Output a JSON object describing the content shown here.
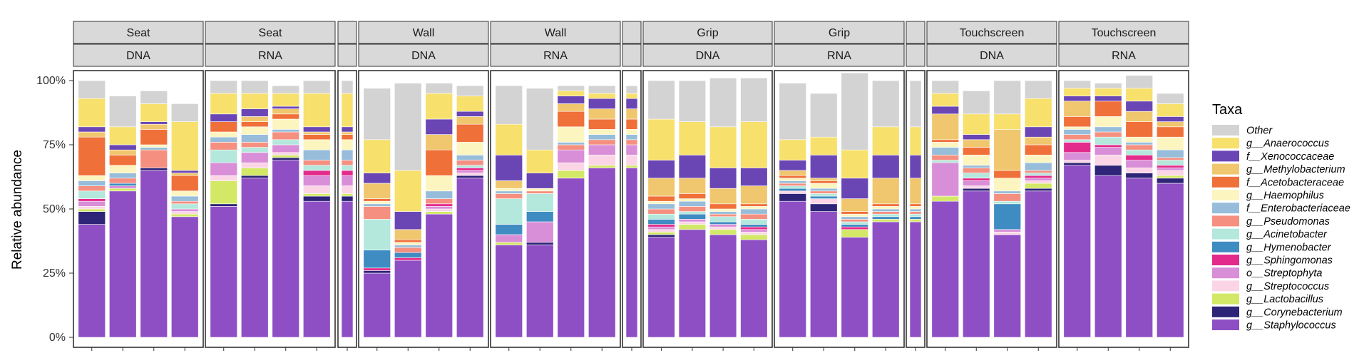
{
  "chart_data": {
    "type": "bar",
    "stacked": true,
    "ylabel": "Relative abundance",
    "xlabel": "",
    "ylim": [
      0,
      100
    ],
    "yticks": [
      0,
      25,
      50,
      75,
      100
    ],
    "ytick_labels": [
      "0%",
      "25%",
      "50%",
      "75%",
      "100%"
    ],
    "legend": {
      "title": "Taxa",
      "position": "right",
      "entries": [
        {
          "name": "Other",
          "color": "#d3d3d3"
        },
        {
          "name": "g__Anaerococcus",
          "color": "#f7e06c"
        },
        {
          "name": "f__Xenococcaceae",
          "color": "#6a46b5"
        },
        {
          "name": "g__Methylobacterium",
          "color": "#f0c76e"
        },
        {
          "name": "f__Acetobacteraceae",
          "color": "#f0703a"
        },
        {
          "name": "g__Haemophilus",
          "color": "#fcf5c0"
        },
        {
          "name": "f__Enterobacteriaceae",
          "color": "#97bddb"
        },
        {
          "name": "g__Pseudomonas",
          "color": "#f59080"
        },
        {
          "name": "g__Acinetobacter",
          "color": "#b4e8dc"
        },
        {
          "name": "g__Hymenobacter",
          "color": "#3f8cc2"
        },
        {
          "name": "g__Sphingomonas",
          "color": "#e32b8c"
        },
        {
          "name": "o__Streptophyta",
          "color": "#d98ed8"
        },
        {
          "name": "g__Streptococcus",
          "color": "#fbd5e6"
        },
        {
          "name": "g__Lactobacillus",
          "color": "#d3e866"
        },
        {
          "name": "g__Corynebacterium",
          "color": "#2e2478"
        },
        {
          "name": "g__Staphylococcus",
          "color": "#8f4fc4"
        }
      ]
    },
    "facets": [
      {
        "top": "Seat",
        "bottom": "DNA",
        "samples": [
          [
            7,
            11,
            2,
            2,
            15,
            2,
            2,
            2,
            3,
            0,
            1,
            2,
            1,
            1,
            5,
            44
          ],
          [
            12,
            7,
            2,
            2,
            4,
            3,
            2,
            2,
            0,
            1,
            0,
            1,
            0,
            1,
            0,
            57
          ],
          [
            5,
            7,
            1,
            2,
            6,
            1,
            1,
            7,
            0,
            0,
            0,
            0,
            0,
            0,
            1,
            65
          ],
          [
            7,
            19,
            1,
            1,
            6,
            2,
            2,
            1,
            2,
            0,
            0,
            1,
            1,
            1,
            0,
            47
          ]
        ]
      },
      {
        "top": "Seat",
        "bottom": "RNA",
        "samples": [
          [
            5,
            8,
            3,
            0,
            4,
            2,
            2,
            3,
            5,
            0,
            0,
            5,
            2,
            9,
            1,
            51
          ],
          [
            5,
            6,
            3,
            2,
            2,
            3,
            3,
            2,
            2,
            0,
            0,
            4,
            2,
            3,
            1,
            62
          ],
          [
            3,
            5,
            1,
            2,
            2,
            4,
            1,
            3,
            2,
            0,
            0,
            3,
            1,
            1,
            1,
            69
          ],
          [
            5,
            13,
            2,
            1,
            2,
            4,
            4,
            2,
            2,
            0,
            2,
            4,
            3,
            1,
            2,
            53
          ]
        ]
      },
      {
        "top": "",
        "bottom": "",
        "samples": [
          [
            5,
            13,
            2,
            1,
            2,
            4,
            4,
            2,
            2,
            0,
            2,
            4,
            3,
            1,
            2,
            53
          ]
        ]
      },
      {
        "top": "Wall",
        "bottom": "DNA",
        "samples": [
          [
            20,
            13,
            4,
            6,
            1,
            1,
            1,
            5,
            12,
            7,
            1,
            0,
            0,
            0,
            1,
            25
          ],
          [
            34,
            16,
            7,
            4,
            1,
            1,
            1,
            2,
            0,
            2,
            1,
            0,
            0,
            0,
            0,
            30
          ],
          [
            4,
            10,
            6,
            6,
            10,
            6,
            3,
            2,
            0,
            0,
            1,
            1,
            1,
            1,
            0,
            48
          ],
          [
            4,
            6,
            2,
            3,
            7,
            5,
            2,
            2,
            1,
            0,
            1,
            1,
            1,
            0,
            1,
            62
          ]
        ]
      },
      {
        "top": "Wall",
        "bottom": "RNA",
        "samples": [
          [
            15,
            12,
            10,
            3,
            0,
            1,
            1,
            2,
            10,
            4,
            0,
            3,
            0,
            1,
            0,
            36
          ],
          [
            24,
            9,
            6,
            0,
            0,
            1,
            0,
            1,
            7,
            4,
            0,
            8,
            0,
            0,
            1,
            36
          ],
          [
            2,
            2,
            3,
            3,
            6,
            6,
            1,
            2,
            0,
            0,
            0,
            5,
            3,
            3,
            0,
            62
          ],
          [
            3,
            2,
            4,
            4,
            4,
            2,
            2,
            2,
            0,
            0,
            0,
            4,
            4,
            1,
            0,
            66
          ]
        ]
      },
      {
        "top": "",
        "bottom": "",
        "samples": [
          [
            3,
            2,
            4,
            4,
            4,
            2,
            2,
            2,
            0,
            0,
            0,
            4,
            4,
            1,
            0,
            66
          ]
        ]
      },
      {
        "top": "Grip",
        "bottom": "DNA",
        "samples": [
          [
            15,
            16,
            7,
            7,
            2,
            1,
            2,
            2,
            2,
            2,
            1,
            1,
            1,
            1,
            1,
            39
          ],
          [
            16,
            13,
            9,
            6,
            2,
            1,
            2,
            2,
            1,
            2,
            0,
            1,
            1,
            2,
            0,
            42
          ],
          [
            19,
            16,
            8,
            6,
            2,
            1,
            1,
            1,
            2,
            1,
            0,
            1,
            1,
            2,
            0,
            40
          ],
          [
            17,
            18,
            7,
            7,
            1,
            1,
            2,
            2,
            2,
            1,
            1,
            1,
            1,
            2,
            0,
            38
          ]
        ]
      },
      {
        "top": "Grip",
        "bottom": "RNA",
        "samples": [
          [
            22,
            8,
            4,
            2,
            1,
            1,
            1,
            1,
            1,
            1,
            0,
            0,
            1,
            0,
            3,
            53
          ],
          [
            17,
            7,
            9,
            1,
            1,
            2,
            1,
            1,
            1,
            1,
            0,
            0,
            2,
            0,
            3,
            49
          ],
          [
            30,
            11,
            8,
            5,
            1,
            1,
            1,
            1,
            1,
            1,
            1,
            0,
            0,
            3,
            0,
            39
          ],
          [
            18,
            11,
            9,
            10,
            1,
            1,
            1,
            1,
            1,
            1,
            0,
            0,
            0,
            1,
            0,
            45
          ]
        ]
      },
      {
        "top": "",
        "bottom": "",
        "samples": [
          [
            18,
            11,
            9,
            10,
            1,
            1,
            1,
            1,
            1,
            1,
            0,
            0,
            0,
            1,
            0,
            45
          ]
        ]
      },
      {
        "top": "Touchscreen",
        "bottom": "DNA",
        "samples": [
          [
            5,
            5,
            3,
            10,
            1,
            2,
            3,
            2,
            1,
            0,
            0,
            13,
            0,
            2,
            0,
            53
          ],
          [
            9,
            8,
            2,
            3,
            3,
            4,
            1,
            2,
            2,
            0,
            1,
            2,
            1,
            0,
            1,
            57
          ],
          [
            13,
            6,
            0,
            16,
            3,
            5,
            1,
            3,
            1,
            10,
            0,
            1,
            1,
            0,
            0,
            40
          ],
          [
            7,
            11,
            4,
            3,
            4,
            3,
            3,
            1,
            1,
            0,
            1,
            1,
            1,
            2,
            1,
            57
          ]
        ]
      },
      {
        "top": "Touchscreen",
        "bottom": "RNA",
        "samples": [
          [
            3,
            3,
            2,
            6,
            4,
            1,
            2,
            2,
            1,
            0,
            4,
            3,
            1,
            0,
            1,
            67
          ],
          [
            2,
            3,
            2,
            0,
            6,
            4,
            2,
            2,
            3,
            0,
            1,
            3,
            4,
            0,
            4,
            63
          ],
          [
            5,
            5,
            4,
            4,
            6,
            2,
            1,
            2,
            2,
            0,
            2,
            3,
            2,
            0,
            2,
            62
          ],
          [
            4,
            5,
            2,
            2,
            4,
            5,
            3,
            1,
            2,
            0,
            1,
            1,
            2,
            1,
            2,
            60
          ]
        ]
      }
    ]
  }
}
